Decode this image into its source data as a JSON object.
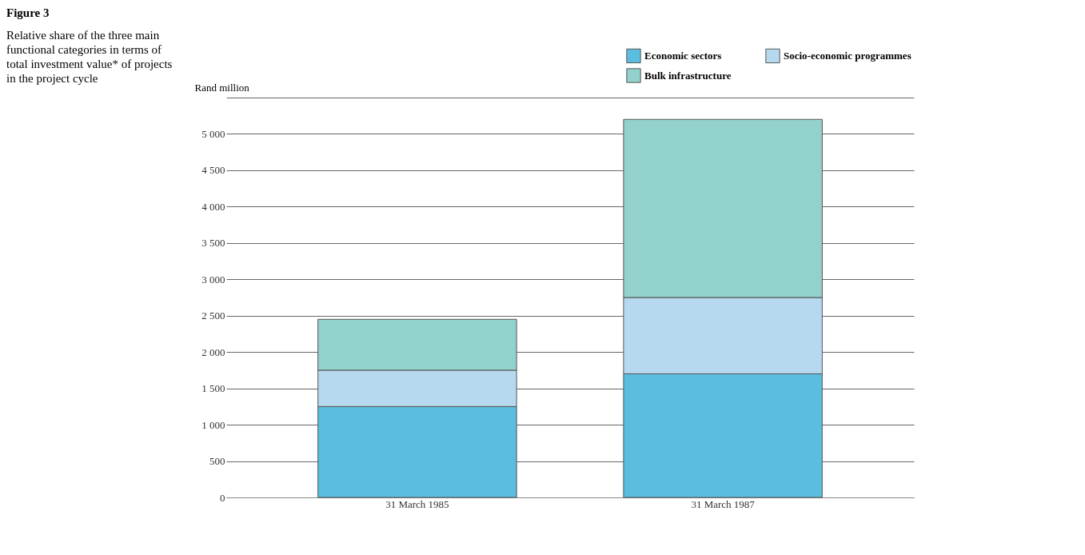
{
  "chart_data": {
    "type": "bar",
    "title": "Figure 3",
    "subtitle": "Relative share of the three main functional categories in terms of total investment value* of projects in the project cycle",
    "ylabel": "Rand million",
    "categories": [
      "31 March 1985",
      "31 March 1987"
    ],
    "series": [
      {
        "name": "Economic sectors",
        "color": "#5bbde0",
        "values": [
          1250,
          1700
        ]
      },
      {
        "name": "Socio-economic programmes",
        "color": "#b7d9f0",
        "values": [
          500,
          1050
        ]
      },
      {
        "name": "Bulk infrastructure",
        "color": "#93d1cc",
        "values": [
          700,
          2450
        ]
      }
    ],
    "stacked": true,
    "ylim": [
      0,
      5500
    ],
    "yticks": [
      0,
      500,
      {
        "value": 1000,
        "label": "1 000"
      },
      {
        "value": 1500,
        "label": "1 500"
      },
      {
        "value": 2000,
        "label": "2 000"
      },
      {
        "value": 2500,
        "label": "2 500"
      },
      {
        "value": 3000,
        "label": "3 000"
      },
      {
        "value": 3500,
        "label": "3 500"
      },
      {
        "value": 4000,
        "label": "4 000"
      },
      {
        "value": 4500,
        "label": "4 500"
      },
      {
        "value": 5000,
        "label": "5 000"
      },
      {
        "value": 5500,
        "label": null
      }
    ],
    "grid": "y",
    "legend": "top right"
  }
}
